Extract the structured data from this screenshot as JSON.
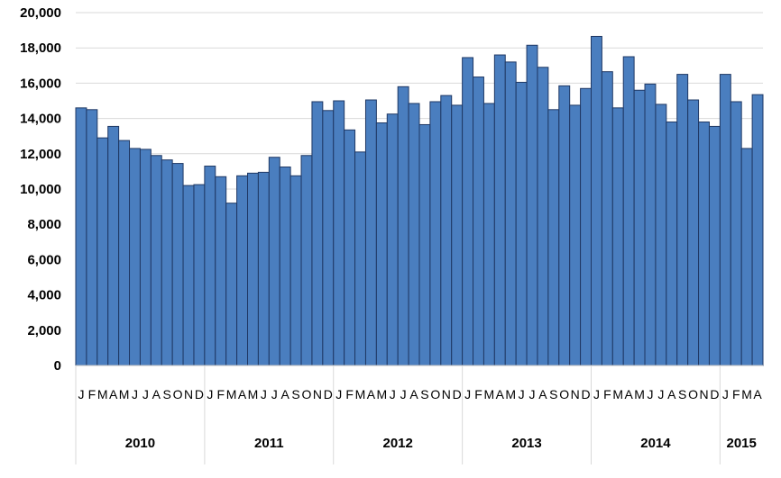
{
  "chart_data": {
    "type": "bar",
    "title": "",
    "xlabel": "",
    "ylabel": "",
    "ylim": [
      0,
      20000
    ],
    "yticks": [
      "0",
      "2,000",
      "4,000",
      "6,000",
      "8,000",
      "10,000",
      "12,000",
      "14,000",
      "16,000",
      "18,000",
      "20,000"
    ],
    "grid": true,
    "legend": "none",
    "bar_color": "#4a7ebf",
    "bar_edge_color": "#1f3864",
    "years": [
      {
        "label": "2010",
        "months": [
          "J",
          "F",
          "M",
          "A",
          "M",
          "J",
          "J",
          "A",
          "S",
          "O",
          "N",
          "D"
        ]
      },
      {
        "label": "2011",
        "months": [
          "J",
          "F",
          "M",
          "A",
          "M",
          "J",
          "J",
          "A",
          "S",
          "O",
          "N",
          "D"
        ]
      },
      {
        "label": "2012",
        "months": [
          "J",
          "F",
          "M",
          "A",
          "M",
          "J",
          "J",
          "A",
          "S",
          "O",
          "N",
          "D"
        ]
      },
      {
        "label": "2013",
        "months": [
          "J",
          "F",
          "M",
          "A",
          "M",
          "J",
          "J",
          "A",
          "S",
          "O",
          "N",
          "D"
        ]
      },
      {
        "label": "2014",
        "months": [
          "J",
          "F",
          "M",
          "A",
          "M",
          "J",
          "J",
          "A",
          "S",
          "O",
          "N",
          "D"
        ]
      },
      {
        "label": "2015",
        "months": [
          "J",
          "F",
          "M",
          "A"
        ]
      }
    ],
    "values": [
      14600,
      14500,
      12900,
      13550,
      12750,
      12300,
      12250,
      11900,
      11650,
      11450,
      10200,
      10250,
      11300,
      10700,
      9200,
      10750,
      10900,
      10950,
      11800,
      11250,
      10750,
      11900,
      14950,
      14450,
      15000,
      13350,
      12100,
      15050,
      13750,
      14250,
      15800,
      14850,
      13650,
      14950,
      15300,
      14750,
      17450,
      16350,
      14850,
      17600,
      17200,
      16050,
      18150,
      16900,
      14500,
      15850,
      14750,
      15700,
      18650,
      16650,
      14600,
      17500,
      15600,
      15950,
      14800,
      13800,
      16500,
      15050,
      13800,
      13550,
      16500,
      14950,
      12300,
      15350
    ]
  }
}
